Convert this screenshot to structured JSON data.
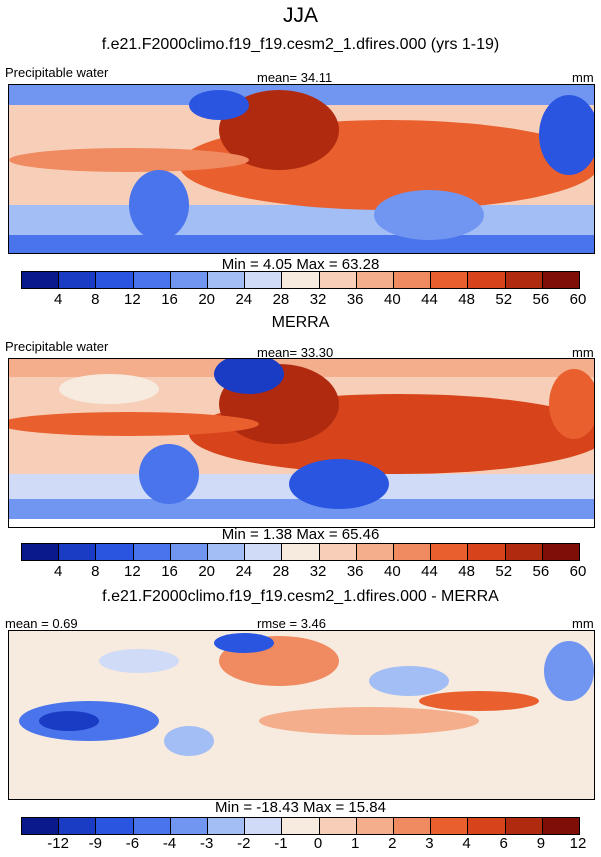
{
  "season": "JJA",
  "colors": [
    "#0a1a8c",
    "#1a3bc4",
    "#2a55e0",
    "#4a74ec",
    "#7096f2",
    "#a3bdf5",
    "#cfdbf7",
    "#f7eadf",
    "#f7cfb8",
    "#f4ae8c",
    "#f08a60",
    "#e9602e",
    "#d7431a",
    "#b02a10",
    "#7e0e06"
  ],
  "panels": [
    {
      "title": "f.e21.F2000climo.f19_f19.cesm2_1.dfires.000 (yrs 1-19)",
      "left_label": "Precipitable water",
      "center_label": "mean=  34.11",
      "right_label": "mm",
      "stats": "Min =   4.05 Max =  63.28",
      "ticks": [
        "4",
        "8",
        "12",
        "16",
        "20",
        "24",
        "28",
        "32",
        "36",
        "40",
        "44",
        "48",
        "52",
        "56",
        "60"
      ]
    },
    {
      "title": "MERRA",
      "left_label": "Precipitable water",
      "center_label": "mean=  33.30",
      "right_label": "mm",
      "stats": "Min =   1.38 Max =  65.46",
      "ticks": [
        "4",
        "8",
        "12",
        "16",
        "20",
        "24",
        "28",
        "32",
        "36",
        "40",
        "44",
        "48",
        "52",
        "56",
        "60"
      ]
    },
    {
      "title": "f.e21.F2000climo.f19_f19.cesm2_1.dfires.000 - MERRA",
      "left_label": "mean =   0.69",
      "center_label": "rmse =   3.46",
      "right_label": "mm",
      "stats": "Min = -18.43 Max =  15.84",
      "ticks": [
        "-12",
        "-9",
        "-6",
        "-4",
        "-3",
        "-2",
        "-1",
        "0",
        "1",
        "2",
        "3",
        "4",
        "6",
        "9",
        "12"
      ]
    }
  ]
}
